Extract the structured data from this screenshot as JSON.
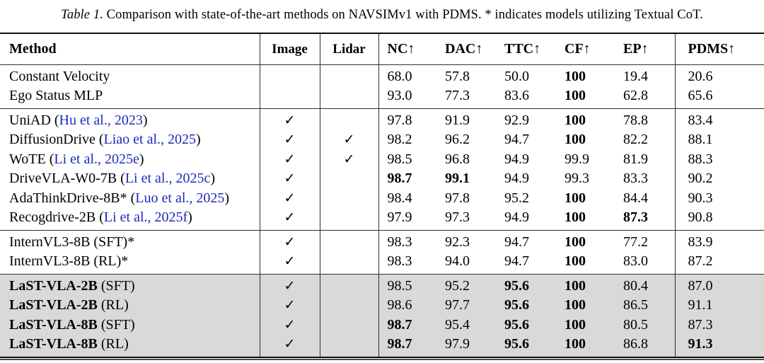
{
  "caption": {
    "label": "Table 1.",
    "text": "Comparison with state-of-the-art methods on NAVSIMv1 with PDMS. * indicates models utilizing Textual CoT."
  },
  "colors": {
    "cite_blue": "#1b2cba",
    "row_shade": "#d9d9d9",
    "rule_dark": "#0d0d0d",
    "rule_mid": "#2f2f2f"
  },
  "table": {
    "checkmark": "✓",
    "columns": [
      {
        "key": "method",
        "label": "Method",
        "arrow": ""
      },
      {
        "key": "image",
        "label": "Image",
        "arrow": ""
      },
      {
        "key": "lidar",
        "label": "Lidar",
        "arrow": ""
      },
      {
        "key": "nc",
        "label": "NC",
        "arrow": "↑"
      },
      {
        "key": "dac",
        "label": "DAC",
        "arrow": "↑"
      },
      {
        "key": "ttc",
        "label": "TTC",
        "arrow": "↑"
      },
      {
        "key": "cf",
        "label": "CF",
        "arrow": "↑"
      },
      {
        "key": "ep",
        "label": "EP",
        "arrow": "↑"
      },
      {
        "key": "pdms",
        "label": "PDMS",
        "arrow": "↑"
      }
    ],
    "groups": [
      {
        "shaded": false,
        "rows": [
          {
            "method": {
              "bold": "",
              "plain": "Constant Velocity",
              "cite": "",
              "post": ""
            },
            "image": false,
            "lidar": false,
            "values": [
              {
                "v": "68.0",
                "b": false
              },
              {
                "v": "57.8",
                "b": false
              },
              {
                "v": "50.0",
                "b": false
              },
              {
                "v": "100",
                "b": true
              },
              {
                "v": "19.4",
                "b": false
              },
              {
                "v": "20.6",
                "b": false
              }
            ]
          },
          {
            "method": {
              "bold": "",
              "plain": "Ego Status MLP",
              "cite": "",
              "post": ""
            },
            "image": false,
            "lidar": false,
            "values": [
              {
                "v": "93.0",
                "b": false
              },
              {
                "v": "77.3",
                "b": false
              },
              {
                "v": "83.6",
                "b": false
              },
              {
                "v": "100",
                "b": true
              },
              {
                "v": "62.8",
                "b": false
              },
              {
                "v": "65.6",
                "b": false
              }
            ]
          }
        ]
      },
      {
        "shaded": false,
        "rows": [
          {
            "method": {
              "bold": "",
              "plain": "UniAD (",
              "cite": "Hu et al., 2023",
              "post": ")"
            },
            "image": true,
            "lidar": false,
            "values": [
              {
                "v": "97.8",
                "b": false
              },
              {
                "v": "91.9",
                "b": false
              },
              {
                "v": "92.9",
                "b": false
              },
              {
                "v": "100",
                "b": true
              },
              {
                "v": "78.8",
                "b": false
              },
              {
                "v": "83.4",
                "b": false
              }
            ]
          },
          {
            "method": {
              "bold": "",
              "plain": "DiffusionDrive (",
              "cite": "Liao et al., 2025",
              "post": ")"
            },
            "image": true,
            "lidar": true,
            "values": [
              {
                "v": "98.2",
                "b": false
              },
              {
                "v": "96.2",
                "b": false
              },
              {
                "v": "94.7",
                "b": false
              },
              {
                "v": "100",
                "b": true
              },
              {
                "v": "82.2",
                "b": false
              },
              {
                "v": "88.1",
                "b": false
              }
            ]
          },
          {
            "method": {
              "bold": "",
              "plain": "WoTE (",
              "cite": "Li et al., 2025e",
              "post": ")"
            },
            "image": true,
            "lidar": true,
            "values": [
              {
                "v": "98.5",
                "b": false
              },
              {
                "v": "96.8",
                "b": false
              },
              {
                "v": "94.9",
                "b": false
              },
              {
                "v": "99.9",
                "b": false
              },
              {
                "v": "81.9",
                "b": false
              },
              {
                "v": "88.3",
                "b": false
              }
            ]
          },
          {
            "method": {
              "bold": "",
              "plain": "DriveVLA-W0-7B (",
              "cite": "Li et al., 2025c",
              "post": ")"
            },
            "image": true,
            "lidar": false,
            "values": [
              {
                "v": "98.7",
                "b": true
              },
              {
                "v": "99.1",
                "b": true
              },
              {
                "v": "94.9",
                "b": false
              },
              {
                "v": "99.3",
                "b": false
              },
              {
                "v": "83.3",
                "b": false
              },
              {
                "v": "90.2",
                "b": false
              }
            ]
          },
          {
            "method": {
              "bold": "",
              "plain": "AdaThinkDrive-8B* (",
              "cite": "Luo et al., 2025",
              "post": ")"
            },
            "image": true,
            "lidar": false,
            "values": [
              {
                "v": "98.4",
                "b": false
              },
              {
                "v": "97.8",
                "b": false
              },
              {
                "v": "95.2",
                "b": false
              },
              {
                "v": "100",
                "b": true
              },
              {
                "v": "84.4",
                "b": false
              },
              {
                "v": "90.3",
                "b": false
              }
            ]
          },
          {
            "method": {
              "bold": "",
              "plain": "Recogdrive-2B (",
              "cite": "Li et al., 2025f",
              "post": ")"
            },
            "image": true,
            "lidar": false,
            "values": [
              {
                "v": "97.9",
                "b": false
              },
              {
                "v": "97.3",
                "b": false
              },
              {
                "v": "94.9",
                "b": false
              },
              {
                "v": "100",
                "b": true
              },
              {
                "v": "87.3",
                "b": true
              },
              {
                "v": "90.8",
                "b": false
              }
            ]
          }
        ]
      },
      {
        "shaded": false,
        "rows": [
          {
            "method": {
              "bold": "",
              "plain": "InternVL3-8B (SFT)*",
              "cite": "",
              "post": ""
            },
            "image": true,
            "lidar": false,
            "values": [
              {
                "v": "98.3",
                "b": false
              },
              {
                "v": "92.3",
                "b": false
              },
              {
                "v": "94.7",
                "b": false
              },
              {
                "v": "100",
                "b": true
              },
              {
                "v": "77.2",
                "b": false
              },
              {
                "v": "83.9",
                "b": false
              }
            ]
          },
          {
            "method": {
              "bold": "",
              "plain": "InternVL3-8B (RL)*",
              "cite": "",
              "post": ""
            },
            "image": true,
            "lidar": false,
            "values": [
              {
                "v": "98.3",
                "b": false
              },
              {
                "v": "94.0",
                "b": false
              },
              {
                "v": "94.7",
                "b": false
              },
              {
                "v": "100",
                "b": true
              },
              {
                "v": "83.0",
                "b": false
              },
              {
                "v": "87.2",
                "b": false
              }
            ]
          }
        ]
      },
      {
        "shaded": true,
        "rows": [
          {
            "method": {
              "bold": "LaST-VLA-2B",
              "plain": " (SFT)",
              "cite": "",
              "post": ""
            },
            "image": true,
            "lidar": false,
            "values": [
              {
                "v": "98.5",
                "b": false
              },
              {
                "v": "95.2",
                "b": false
              },
              {
                "v": "95.6",
                "b": true
              },
              {
                "v": "100",
                "b": true
              },
              {
                "v": "80.4",
                "b": false
              },
              {
                "v": "87.0",
                "b": false
              }
            ]
          },
          {
            "method": {
              "bold": "LaST-VLA-2B",
              "plain": " (RL)",
              "cite": "",
              "post": ""
            },
            "image": true,
            "lidar": false,
            "values": [
              {
                "v": "98.6",
                "b": false
              },
              {
                "v": "97.7",
                "b": false
              },
              {
                "v": "95.6",
                "b": true
              },
              {
                "v": "100",
                "b": true
              },
              {
                "v": "86.5",
                "b": false
              },
              {
                "v": "91.1",
                "b": false
              }
            ]
          },
          {
            "method": {
              "bold": "LaST-VLA-8B",
              "plain": " (SFT)",
              "cite": "",
              "post": ""
            },
            "image": true,
            "lidar": false,
            "values": [
              {
                "v": "98.7",
                "b": true
              },
              {
                "v": "95.4",
                "b": false
              },
              {
                "v": "95.6",
                "b": true
              },
              {
                "v": "100",
                "b": true
              },
              {
                "v": "80.5",
                "b": false
              },
              {
                "v": "87.3",
                "b": false
              }
            ]
          },
          {
            "method": {
              "bold": "LaST-VLA-8B",
              "plain": " (RL)",
              "cite": "",
              "post": ""
            },
            "image": true,
            "lidar": false,
            "values": [
              {
                "v": "98.7",
                "b": true
              },
              {
                "v": "97.9",
                "b": false
              },
              {
                "v": "95.6",
                "b": true
              },
              {
                "v": "100",
                "b": true
              },
              {
                "v": "86.8",
                "b": false
              },
              {
                "v": "91.3",
                "b": true
              }
            ]
          }
        ]
      }
    ]
  }
}
